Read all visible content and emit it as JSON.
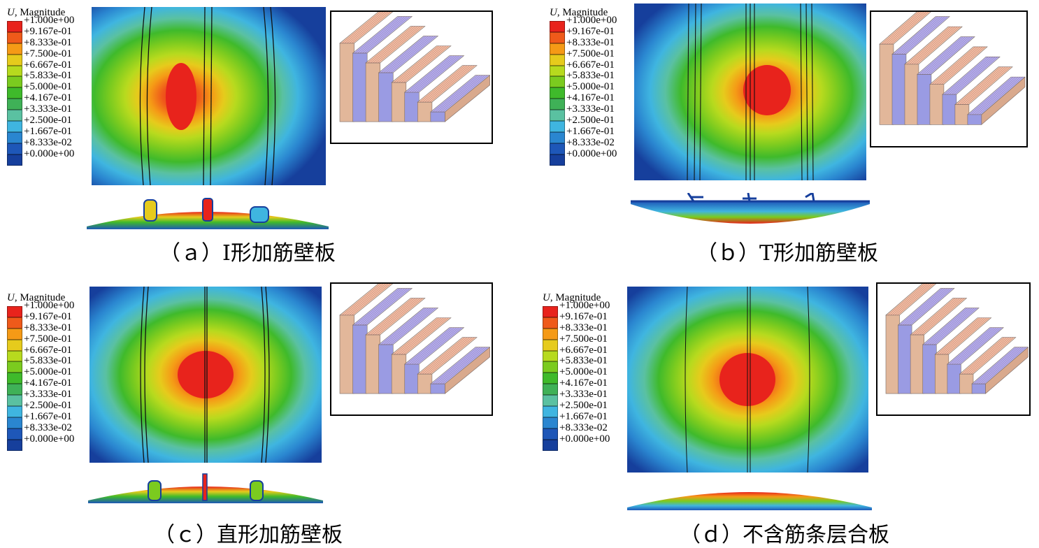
{
  "legend": {
    "variable": "U",
    "quantity": ", Magnitude",
    "labels": [
      "+1.000e+00",
      "+9.167e-01",
      "+8.333e-01",
      "+7.500e-01",
      "+6.667e-01",
      "+5.833e-01",
      "+5.000e-01",
      "+4.167e-01",
      "+3.333e-01",
      "+2.500e-01",
      "+1.667e-01",
      "+8.333e-02",
      "+0.000e+00"
    ],
    "colors": [
      "#e8231c",
      "#ef5a1a",
      "#f59a16",
      "#e6cb1c",
      "#b7da1e",
      "#7bcb1f",
      "#3fba2b",
      "#3fb157",
      "#5ac1a1",
      "#3fb5e0",
      "#2a86d0",
      "#1e57b8",
      "#163f9c"
    ]
  },
  "panels": [
    {
      "id": "a",
      "caption": "（ａ）I形加筋壁板"
    },
    {
      "id": "b",
      "caption": "（ｂ）T形加筋壁板"
    },
    {
      "id": "c",
      "caption": "（ｃ）直形加筋壁板"
    },
    {
      "id": "d",
      "caption": "（ｄ）不含筋条层合板"
    }
  ]
}
